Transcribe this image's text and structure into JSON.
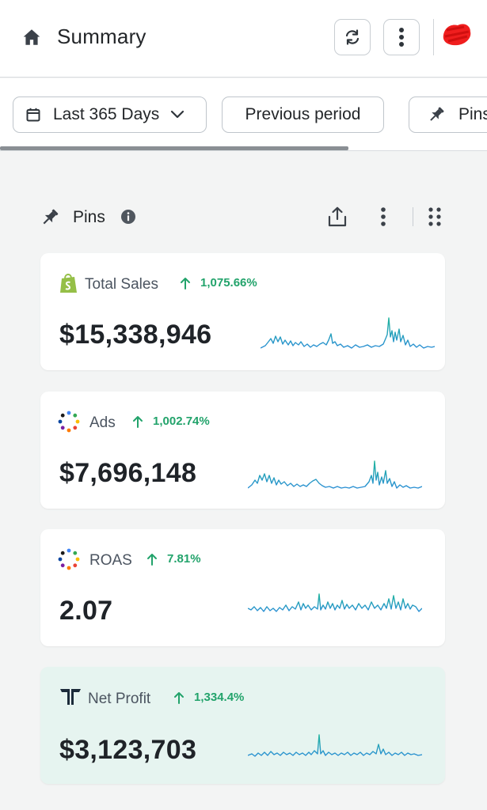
{
  "header": {
    "title": "Summary"
  },
  "filters": {
    "range_label": "Last 365 Days",
    "compare_label": "Previous period",
    "pins_label": "Pins"
  },
  "section": {
    "title": "Pins"
  },
  "colors": {
    "accent_green": "#22a36b",
    "spark_blue": "#2a8fd4",
    "spark_teal": "#21b59e",
    "tint_bg": "#e6f4f0"
  },
  "metrics": [
    {
      "label": "Total Sales",
      "change": "1,075.66%",
      "value": "$15,338,946",
      "icon": "shopify-icon"
    },
    {
      "label": "Ads",
      "change": "1,002.74%",
      "value": "$7,696,148",
      "icon": "ads-dots-icon"
    },
    {
      "label": "ROAS",
      "change": "7.81%",
      "value": "2.07",
      "icon": "roas-dots-icon"
    },
    {
      "label": "Net Profit",
      "change": "1,334.4%",
      "value": "$3,123,703",
      "icon": "net-profit-logo-icon"
    }
  ]
}
